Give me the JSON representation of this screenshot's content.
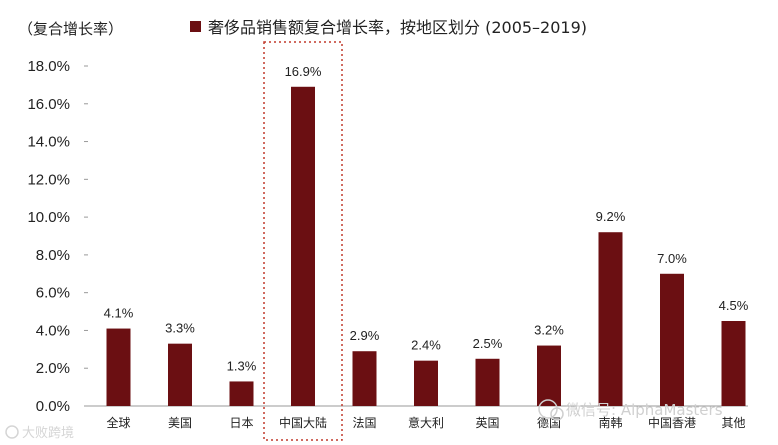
{
  "chart_data": {
    "type": "bar",
    "ylabel": "（复合增长率）",
    "legend": "奢侈品销售额复合增长率，按地区划分 (2005–2019)",
    "categories": [
      "全球",
      "美国",
      "日本",
      "中国大陆",
      "法国",
      "意大利",
      "英国",
      "德国",
      "南韩",
      "中国香港",
      "其他"
    ],
    "values": [
      4.1,
      3.3,
      1.3,
      16.9,
      2.9,
      2.4,
      2.5,
      3.2,
      9.2,
      7.0,
      4.5
    ],
    "value_labels": [
      "4.1%",
      "3.3%",
      "1.3%",
      "16.9%",
      "2.9%",
      "2.4%",
      "2.5%",
      "3.2%",
      "9.2%",
      "7.0%",
      "4.5%"
    ],
    "yticks": [
      "0.0%",
      "2.0%",
      "4.0%",
      "6.0%",
      "8.0%",
      "10.0%",
      "12.0%",
      "14.0%",
      "16.0%",
      "18.0%"
    ],
    "ylim": [
      0,
      18
    ],
    "highlight_category": "中国大陆",
    "colors": {
      "bar": "#6b0f12",
      "highlight_box": "#c0392b"
    }
  },
  "watermarks": {
    "wechat": "微信号: AlphaMasters",
    "source": "大败跨境"
  }
}
